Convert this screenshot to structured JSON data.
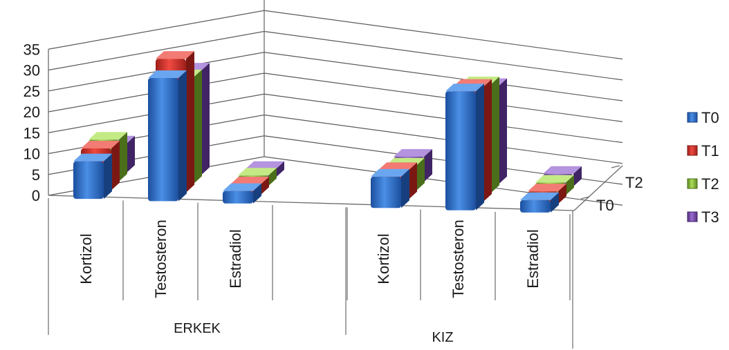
{
  "chart_data": {
    "type": "bar",
    "subtype": "3d-clustered-column",
    "title": "",
    "xlabel": "",
    "ylabel": "",
    "ylim": [
      0,
      35
    ],
    "y_ticks": [
      "0",
      "5",
      "10",
      "15",
      "20",
      "25",
      "30",
      "35"
    ],
    "depth_labels": [
      "T2",
      "T0"
    ],
    "groups": [
      {
        "label": "ERKEK",
        "categories": [
          "Kortizol",
          "Testosteron",
          "Estradiol"
        ]
      },
      {
        "label": "KIZ",
        "categories": [
          "Kortizol",
          "Testosteron",
          "Estradiol"
        ]
      }
    ],
    "series": [
      {
        "name": "T0",
        "color": "#2e6fcf",
        "values": [
          9,
          29.5,
          3,
          7.5,
          28.5,
          3
        ]
      },
      {
        "name": "T1",
        "color": "#d9312b",
        "values": [
          10,
          32,
          2.5,
          7,
          27.5,
          3
        ]
      },
      {
        "name": "T2",
        "color": "#8cc33a",
        "values": [
          10,
          25.5,
          2.5,
          6,
          26,
          3
        ]
      },
      {
        "name": "T3",
        "color": "#7e4fb5",
        "values": [
          7,
          25,
          2,
          6,
          23.5,
          3
        ]
      }
    ],
    "legend_position": "right",
    "grid": true
  }
}
